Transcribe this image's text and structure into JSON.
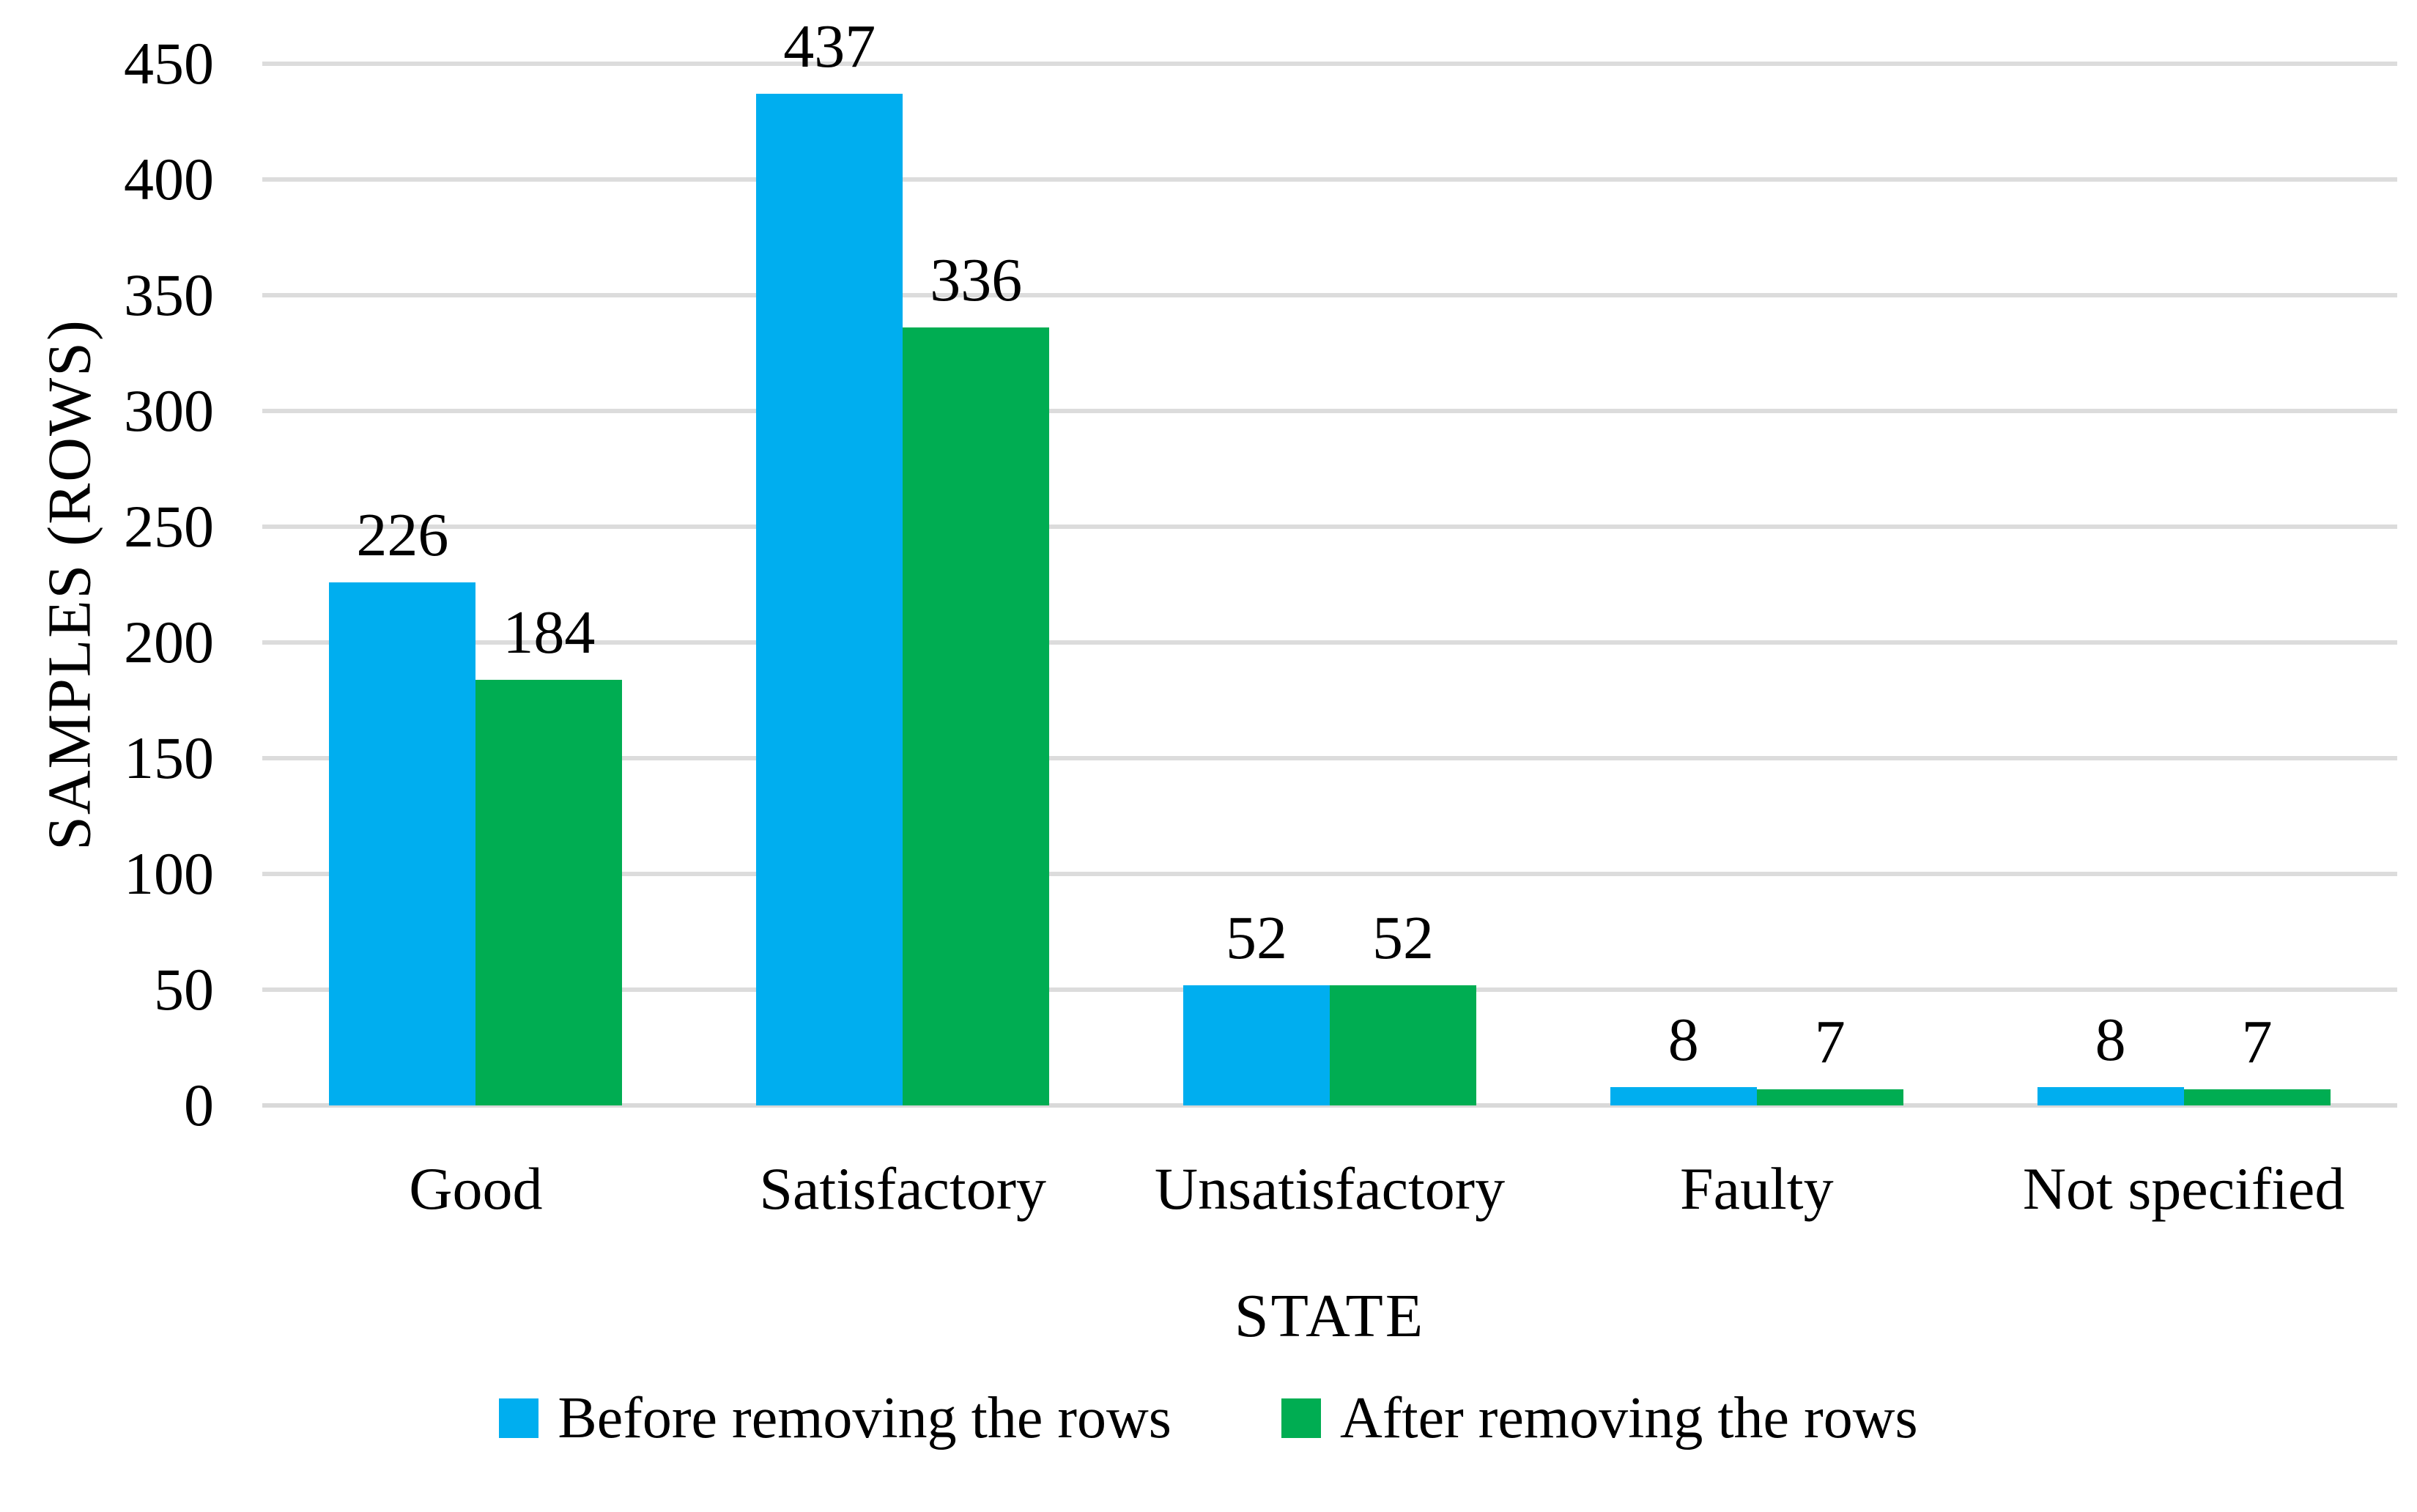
{
  "figure": {
    "background": "#FFFFFF",
    "text_color": "#000000"
  },
  "chart_data": {
    "type": "bar",
    "title": "",
    "categories": [
      "Good",
      "Satisfactory",
      "Unsatisfactory",
      "Faulty",
      "Not specified"
    ],
    "series": [
      {
        "name": "Before removing the rows",
        "color": "#00AEEF",
        "values": [
          226,
          437,
          52,
          8,
          8
        ]
      },
      {
        "name": "After removing the rows",
        "color": "#00AD52",
        "values": [
          184,
          336,
          52,
          7,
          7
        ]
      }
    ],
    "xlabel": "STATE",
    "ylabel": "SAMPLES (ROWS)",
    "ylim": [
      0,
      450
    ],
    "y_ticks": [
      0,
      50,
      100,
      150,
      200,
      250,
      300,
      350,
      400,
      450
    ],
    "grid": "horizontal",
    "gridline_color": "#DCDCDC",
    "axis_line_color": "#D9D9D9",
    "data_labels": "outside-end",
    "legend_position": "bottom"
  }
}
